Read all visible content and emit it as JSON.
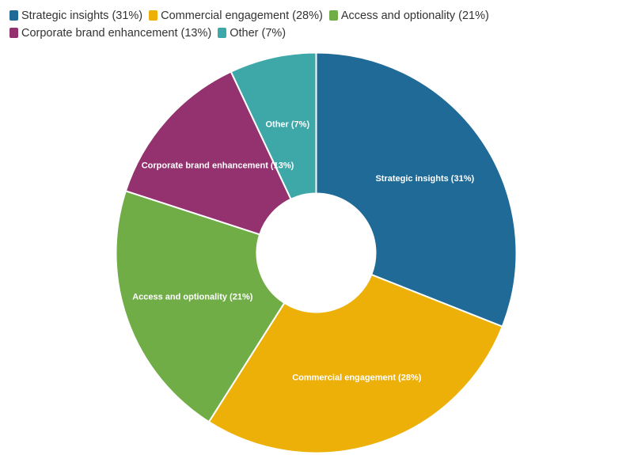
{
  "chart_data": {
    "type": "pie",
    "variant": "donut",
    "title": "",
    "legend_position": "top-left",
    "slices": [
      {
        "label": "Strategic insights (31%)",
        "value": 31,
        "color": "#1f6a96"
      },
      {
        "label": "Commercial engagement (28%)",
        "value": 28,
        "color": "#ecb009"
      },
      {
        "label": "Access and optionality (21%)",
        "value": 21,
        "color": "#70ad47"
      },
      {
        "label": "Corporate brand enhancement (13%)",
        "value": 13,
        "color": "#93326e"
      },
      {
        "label": "Other (7%)",
        "value": 7,
        "color": "#3ea8a8"
      }
    ]
  }
}
